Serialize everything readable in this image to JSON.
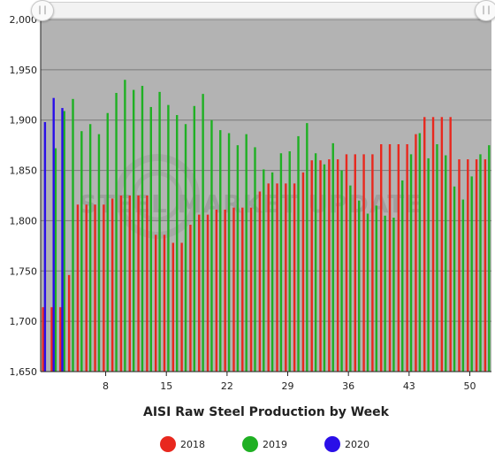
{
  "chart_data": {
    "type": "bar",
    "title": "AISI Raw Steel Production by Week",
    "xlabel": "",
    "ylabel": "",
    "ylim": [
      1650,
      2000
    ],
    "yticks": [
      1650,
      1700,
      1750,
      1800,
      1850,
      1900,
      1950,
      2000
    ],
    "y_tick_labels": [
      "1,650",
      "1,700",
      "1,750",
      "1,800",
      "1,850",
      "1,900",
      "1,950",
      "2,000"
    ],
    "xticks": [
      8,
      15,
      22,
      29,
      36,
      43,
      50
    ],
    "x_range": [
      1,
      52
    ],
    "grid": true,
    "plot_background": "#b3b3b3",
    "legend_position": "bottom",
    "watermark": "STEEL MARKET UPDATE",
    "series": [
      {
        "name": "2018",
        "color": "#e8281e",
        "x": [
          1,
          2,
          3,
          4,
          5,
          6,
          7,
          8,
          9,
          10,
          11,
          12,
          13,
          14,
          15,
          16,
          17,
          18,
          19,
          20,
          21,
          22,
          23,
          24,
          25,
          26,
          27,
          28,
          29,
          30,
          31,
          32,
          33,
          34,
          35,
          36,
          37,
          38,
          39,
          40,
          41,
          42,
          43,
          44,
          45,
          46,
          47,
          48,
          49,
          50,
          51,
          52
        ],
        "values": [
          1714,
          1714,
          1714,
          1746,
          1816,
          1816,
          1816,
          1816,
          1822,
          1825,
          1825,
          1825,
          1825,
          1786,
          1786,
          1778,
          1778,
          1796,
          1806,
          1806,
          1811,
          1811,
          1813,
          1813,
          1813,
          1829,
          1837,
          1837,
          1837,
          1837,
          1848,
          1860,
          1860,
          1861,
          1861,
          1866,
          1866,
          1866,
          1866,
          1876,
          1876,
          1876,
          1876,
          1886,
          1903,
          1903,
          1903,
          1903,
          1861,
          1861,
          1861,
          1861
        ]
      },
      {
        "name": "2019",
        "color": "#1fb023",
        "x": [
          2,
          3,
          4,
          5,
          6,
          7,
          8,
          9,
          10,
          11,
          12,
          13,
          14,
          15,
          16,
          17,
          18,
          19,
          20,
          21,
          22,
          23,
          24,
          25,
          26,
          27,
          28,
          29,
          30,
          31,
          32,
          33,
          34,
          35,
          36,
          37,
          38,
          39,
          40,
          41,
          42,
          43,
          44,
          45,
          46,
          47,
          48,
          49,
          50,
          51,
          52
        ],
        "values": [
          1872,
          1909,
          1921,
          1889,
          1896,
          1886,
          1907,
          1927,
          1940,
          1930,
          1934,
          1913,
          1928,
          1915,
          1905,
          1896,
          1914,
          1926,
          1900,
          1890,
          1887,
          1875,
          1886,
          1873,
          1851,
          1848,
          1867,
          1869,
          1884,
          1897,
          1867,
          1856,
          1877,
          1850,
          1835,
          1820,
          1807,
          1815,
          1805,
          1803,
          1840,
          1866,
          1887,
          1862,
          1876,
          1865,
          1834,
          1821,
          1844,
          1866,
          1875
        ]
      },
      {
        "name": "2020",
        "color": "#2a0fe8",
        "x": [
          1,
          2,
          3
        ],
        "values": [
          1898,
          1922,
          1912
        ]
      }
    ]
  }
}
